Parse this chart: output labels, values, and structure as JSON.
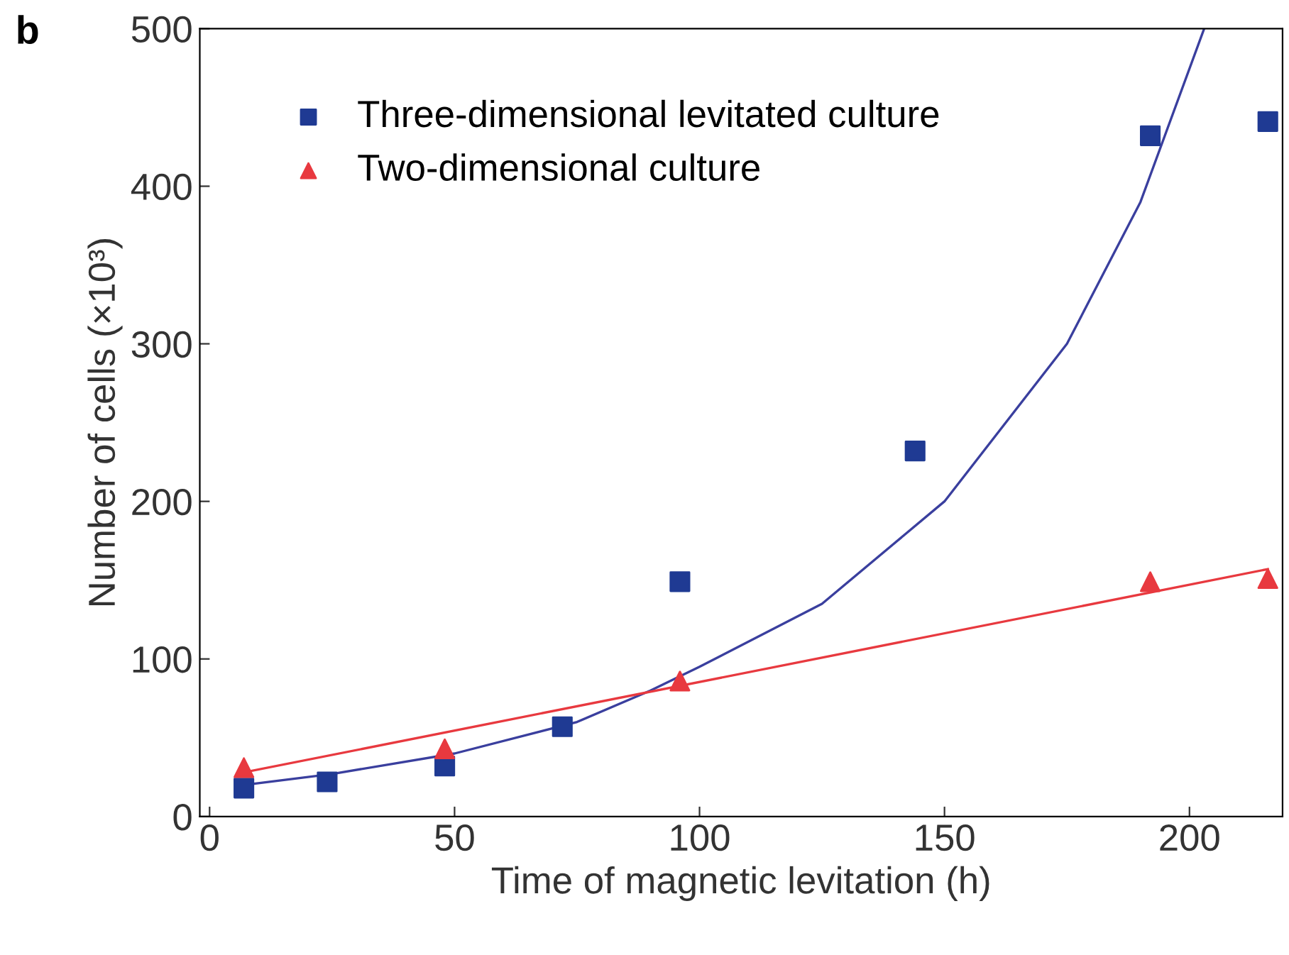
{
  "chart_data": {
    "type": "scatter",
    "xlabel": "Time of magnetic levitation (h)",
    "ylabel": "Number of cells (×10³)",
    "annotations": [
      "b"
    ],
    "xlim": [
      -2,
      219
    ],
    "ylim": [
      0,
      500
    ],
    "xticks": [
      0,
      50,
      100,
      150,
      200
    ],
    "yticks": [
      0,
      100,
      200,
      300,
      400,
      500
    ],
    "grid": false,
    "legend": "top left",
    "series": [
      {
        "name": "Three-dimensional levitated culture",
        "color": "#1f3a93",
        "marker": "square",
        "x": [
          7,
          24,
          48,
          72,
          96,
          144,
          192,
          216
        ],
        "values": [
          18,
          22,
          32,
          57,
          149,
          232,
          432,
          441
        ]
      },
      {
        "name": "Two-dimensional culture",
        "color": "#e8393f",
        "marker": "triangle",
        "x": [
          7,
          48,
          96,
          192,
          216
        ],
        "values": [
          31,
          43,
          86,
          149,
          151
        ]
      },
      {
        "type": "line",
        "color": "#3a3f9e",
        "x": [
          7,
          25,
          50,
          75,
          90,
          100,
          125,
          150,
          175,
          190,
          203
        ],
        "values": [
          20,
          27,
          40,
          60,
          80,
          95,
          135,
          200,
          300,
          390,
          500
        ]
      },
      {
        "type": "line",
        "color": "#e8393f",
        "x": [
          7,
          216
        ],
        "values": [
          28,
          157
        ]
      }
    ]
  }
}
